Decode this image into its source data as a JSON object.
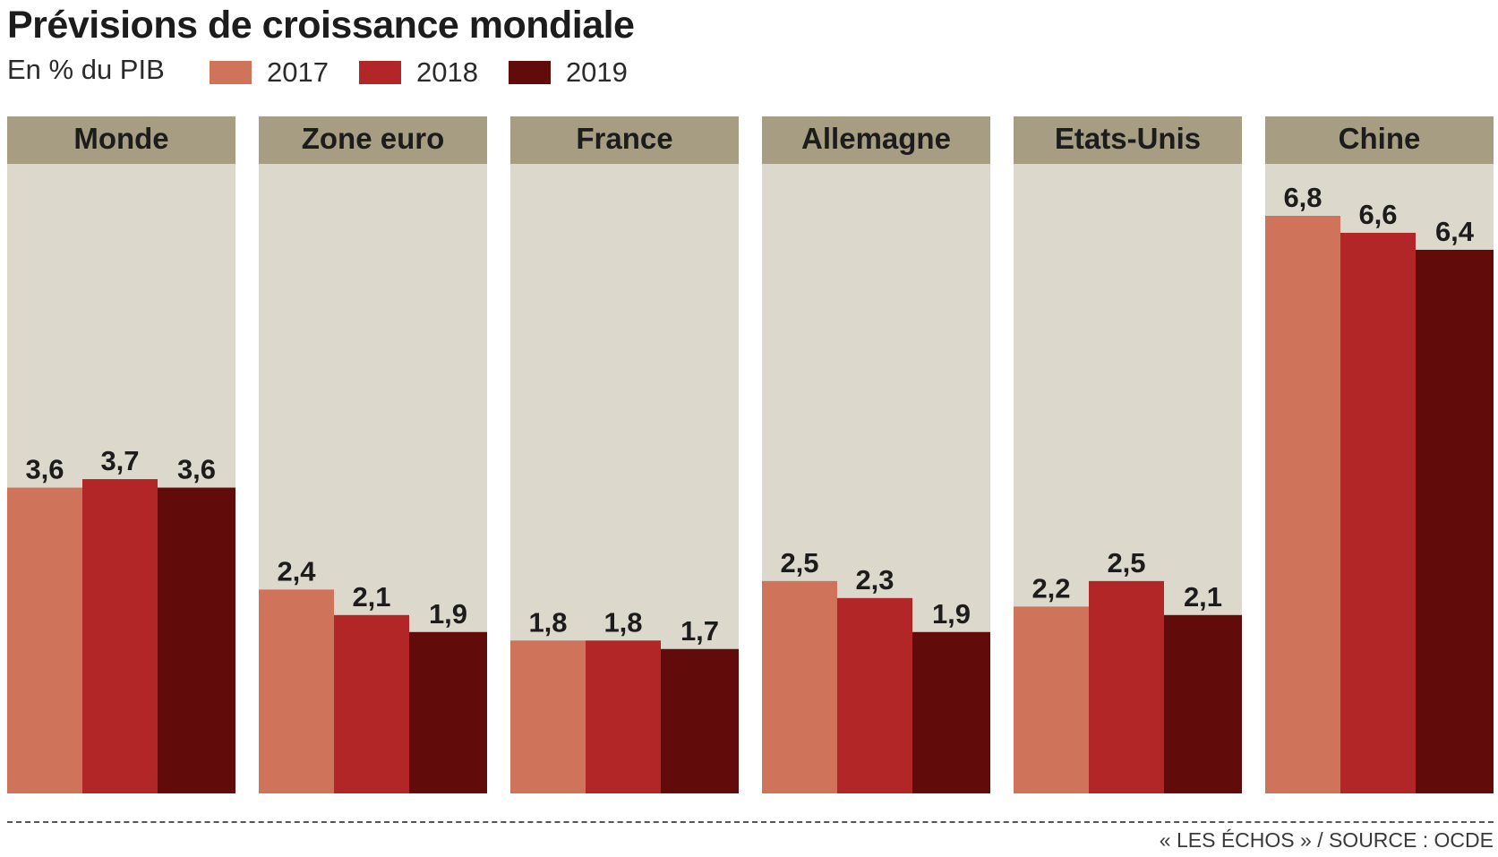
{
  "title": "Prévisions de croissance mondiale",
  "subtitle": "En % du PIB",
  "source": "« LES ÉCHOS » / SOURCE : OCDE",
  "colors": {
    "series_2017": "#cf735b",
    "series_2018": "#b22628",
    "series_2019": "#620b0b",
    "panel_header": "#a69d82",
    "panel_background": "#dcd8cc"
  },
  "chart_data": {
    "type": "bar",
    "title": "Prévisions de croissance mondiale",
    "subtitle": "En % du PIB",
    "categories": [
      "Monde",
      "Zone euro",
      "France",
      "Allemagne",
      "Etats-Unis",
      "Chine"
    ],
    "series": [
      {
        "name": "2017",
        "color": "#cf735b",
        "values": [
          3.6,
          2.4,
          1.8,
          2.5,
          2.2,
          6.8
        ],
        "labels": [
          "3,6",
          "2,4",
          "1,8",
          "2,5",
          "2,2",
          "6,8"
        ]
      },
      {
        "name": "2018",
        "color": "#b22628",
        "values": [
          3.7,
          2.1,
          1.8,
          2.3,
          2.5,
          6.6
        ],
        "labels": [
          "3,7",
          "2,1",
          "1,8",
          "2,3",
          "2,5",
          "6,6"
        ]
      },
      {
        "name": "2019",
        "color": "#620b0b",
        "values": [
          3.6,
          1.9,
          1.7,
          1.9,
          2.1,
          6.4
        ],
        "labels": [
          "3,6",
          "1,9",
          "1,7",
          "1,9",
          "2,1",
          "6,4"
        ]
      }
    ],
    "xlabel": "",
    "ylabel": "",
    "ylim": [
      0,
      7.5
    ],
    "grid": false,
    "legend": "top-left, below title",
    "layout": "small multiples: one panel per category"
  }
}
